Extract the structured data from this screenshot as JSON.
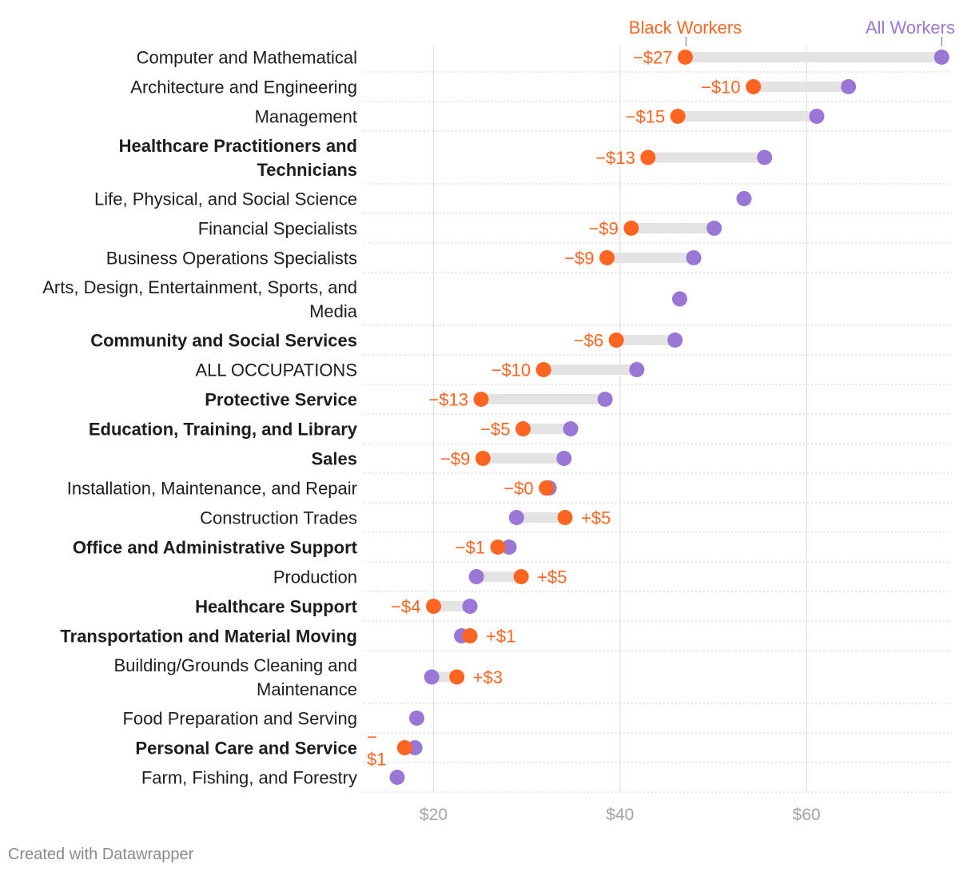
{
  "chart_data": {
    "type": "dot",
    "legend": {
      "black": "Black Workers",
      "all": "All Workers"
    },
    "colors": {
      "black": "#ff6521",
      "all": "#9a76d6",
      "range": "#e3e3e3",
      "grid": "#e0e0e0",
      "text": "#1d1d1d",
      "ticks": "#a3a3a3"
    },
    "xlim": [
      12.5,
      75.5
    ],
    "xticks": [
      20,
      40,
      60
    ],
    "xtick_labels": [
      "$20",
      "$40",
      "$60"
    ],
    "categories": [
      {
        "lines": [
          "Computer and Mathematical"
        ],
        "bold": false,
        "all": 74.5,
        "black": 47.0,
        "diff": "−$27"
      },
      {
        "lines": [
          "Architecture and Engineering"
        ],
        "bold": false,
        "all": 64.5,
        "black": 54.3,
        "diff": "−$10"
      },
      {
        "lines": [
          "Management"
        ],
        "bold": false,
        "all": 61.1,
        "black": 46.2,
        "diff": "−$15"
      },
      {
        "lines": [
          "Healthcare Practitioners and",
          "Technicians"
        ],
        "bold": true,
        "all": 55.5,
        "black": 43.0,
        "diff": "−$13"
      },
      {
        "lines": [
          "Life, Physical, and Social Science"
        ],
        "bold": false,
        "all": 53.3,
        "black": null,
        "diff": ""
      },
      {
        "lines": [
          "Financial Specialists"
        ],
        "bold": false,
        "all": 50.1,
        "black": 41.2,
        "diff": "−$9"
      },
      {
        "lines": [
          "Business Operations Specialists"
        ],
        "bold": false,
        "all": 47.9,
        "black": 38.6,
        "diff": "−$9"
      },
      {
        "lines": [
          "Arts, Design, Entertainment, Sports, and",
          "Media"
        ],
        "bold": false,
        "all": 46.4,
        "black": null,
        "diff": ""
      },
      {
        "lines": [
          "Community and Social Services"
        ],
        "bold": true,
        "all": 45.9,
        "black": 39.6,
        "diff": "−$6"
      },
      {
        "lines": [
          "ALL OCCUPATIONS"
        ],
        "bold": false,
        "all": 41.8,
        "black": 31.8,
        "diff": "−$10"
      },
      {
        "lines": [
          "Protective Service"
        ],
        "bold": true,
        "all": 38.4,
        "black": 25.1,
        "diff": "−$13"
      },
      {
        "lines": [
          "Education, Training, and Library"
        ],
        "bold": true,
        "all": 34.7,
        "black": 29.6,
        "diff": "−$5"
      },
      {
        "lines": [
          "Sales"
        ],
        "bold": true,
        "all": 34.0,
        "black": 25.3,
        "diff": "−$9"
      },
      {
        "lines": [
          "Installation, Maintenance, and Repair"
        ],
        "bold": false,
        "all": 32.4,
        "black": 32.1,
        "diff": "−$0"
      },
      {
        "lines": [
          "Construction Trades"
        ],
        "bold": false,
        "all": 28.9,
        "black": 34.1,
        "diff": "+$5"
      },
      {
        "lines": [
          "Office and Administrative Support"
        ],
        "bold": true,
        "all": 28.1,
        "black": 26.9,
        "diff": "−$1"
      },
      {
        "lines": [
          "Production"
        ],
        "bold": false,
        "all": 24.6,
        "black": 29.4,
        "diff": "+$5"
      },
      {
        "lines": [
          "Healthcare Support"
        ],
        "bold": true,
        "all": 23.9,
        "black": 20.0,
        "diff": "−$4"
      },
      {
        "lines": [
          "Transportation and Material Moving"
        ],
        "bold": true,
        "all": 23.0,
        "black": 23.9,
        "diff": "+$1"
      },
      {
        "lines": [
          "Building/Grounds Cleaning and",
          "Maintenance"
        ],
        "bold": false,
        "all": 19.8,
        "black": 22.5,
        "diff": "+$3"
      },
      {
        "lines": [
          "Food Preparation and Serving"
        ],
        "bold": false,
        "all": 18.2,
        "black": null,
        "diff": ""
      },
      {
        "lines": [
          "Personal Care and Service"
        ],
        "bold": true,
        "all": 18.0,
        "black": 16.9,
        "diff": "−$1"
      },
      {
        "lines": [
          "Farm, Fishing, and Forestry"
        ],
        "bold": false,
        "all": 16.1,
        "black": null,
        "diff": ""
      }
    ]
  },
  "footer": "Created with Datawrapper"
}
